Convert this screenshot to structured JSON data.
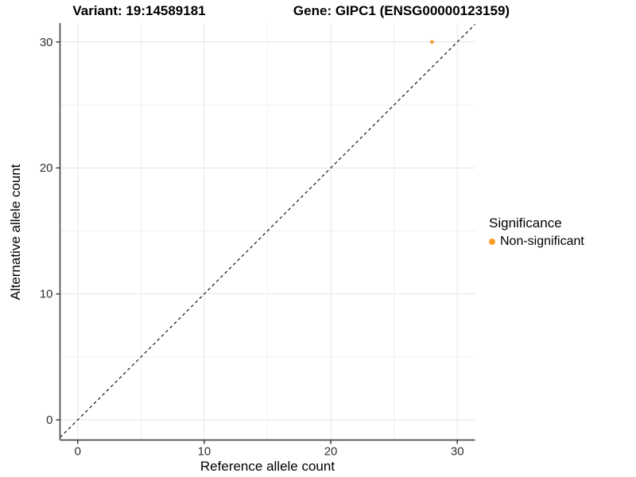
{
  "titles": {
    "variant": "Variant: 19:14589181",
    "gene": "Gene: GIPC1 (ENSG00000123159)"
  },
  "chart_data": {
    "type": "scatter",
    "xlabel": "Reference allele count",
    "ylabel": "Alternative allele count",
    "xlim": [
      -1.4,
      31.4
    ],
    "ylim": [
      -1.6,
      31.5
    ],
    "x_major_ticks": [
      0,
      10,
      20,
      30
    ],
    "y_major_ticks": [
      0,
      10,
      20,
      30
    ],
    "x_minor_ticks": [
      5,
      15,
      25
    ],
    "y_minor_ticks": [
      5,
      15,
      25
    ],
    "grid": true,
    "legend_position": "right",
    "identity_line": {
      "slope": 1,
      "intercept": 0,
      "style": "dashed"
    },
    "series": [
      {
        "name": "Non-significant",
        "points": [
          {
            "x": 28,
            "y": 30
          }
        ]
      }
    ]
  },
  "legend": {
    "title": "Significance",
    "items": [
      {
        "label": "Non-significant",
        "color": "#FB9D2B"
      }
    ]
  },
  "colors": {
    "point": "#FB9D2B",
    "axis_line": "#4d4d4d",
    "tick_mark": "#333333",
    "tick_text": "#303030",
    "grid_major": "#E4E4E4",
    "grid_minor": "#F0F0F0",
    "dashed_line": "#000000"
  }
}
